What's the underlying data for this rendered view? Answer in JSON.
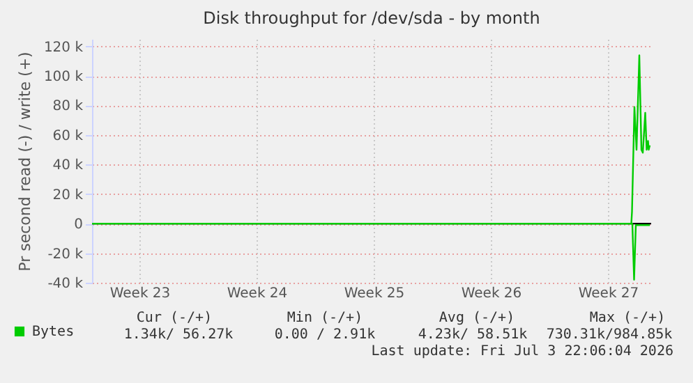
{
  "chart_data": {
    "type": "line",
    "title": "Disk throughput for /dev/sda - by month",
    "ylabel": "Pr second read (-) / write (+)",
    "xlim": [
      "2026-06-01T16:00",
      "2026-07-05T02:00"
    ],
    "xticks": [
      {
        "value": "2026-06-04T12:00",
        "label": "Week 23"
      },
      {
        "value": "2026-06-11T12:00",
        "label": "Week 24"
      },
      {
        "value": "2026-06-18T12:00",
        "label": "Week 25"
      },
      {
        "value": "2026-06-25T12:00",
        "label": "Week 26"
      },
      {
        "value": "2026-07-02T12:00",
        "label": "Week 27"
      }
    ],
    "ylim": [
      -40000,
      125000
    ],
    "yticks": [
      {
        "value": -40000,
        "label": "-40 k"
      },
      {
        "value": -20000,
        "label": "-20 k"
      },
      {
        "value": 0,
        "label": "0"
      },
      {
        "value": 20000,
        "label": "20 k"
      },
      {
        "value": 40000,
        "label": "40 k"
      },
      {
        "value": 60000,
        "label": "60 k"
      },
      {
        "value": 80000,
        "label": "80 k"
      },
      {
        "value": 100000,
        "label": "100 k"
      },
      {
        "value": 120000,
        "label": "120 k"
      }
    ],
    "grid": true,
    "legend": "bottom left",
    "ref_lines": [
      {
        "axis": "y",
        "value": 0,
        "color": "#000000"
      }
    ],
    "series": [
      {
        "name": "Bytes",
        "color": "#00cc00",
        "x": [
          "2026-06-01T16:00",
          "2026-07-03T21:30",
          "2026-07-03T22:30",
          "2026-07-04T02:00",
          "2026-07-04T05:00",
          "2026-07-04T09:00",
          "2026-07-04T12:00",
          "2026-07-04T14:00",
          "2026-07-04T17:30",
          "2026-07-04T19:30",
          "2026-07-04T21:30",
          "2026-07-04T22:30",
          "2026-07-05T00:00"
        ],
        "values": [
          0,
          0,
          8000,
          79000,
          50000,
          114000,
          50000,
          48000,
          75000,
          50000,
          56000,
          50000,
          53000
        ]
      },
      {
        "color": "#00cc00",
        "x": [
          "2026-06-01T16:00",
          "2026-07-03T23:00",
          "2026-07-04T01:30",
          "2026-07-04T04:00",
          "2026-07-05T00:00"
        ],
        "values": [
          0,
          0,
          -38000,
          -1000,
          -1000
        ]
      }
    ],
    "annotations": [
      "Cur (-/+)",
      "Min (-/+)",
      "Avg (-/+)",
      "Max (-/+)",
      "1.34k/ 56.27k",
      "0.00 /  2.91k",
      "4.23k/ 58.51k",
      "730.31k/984.85k",
      "Last update: Fri Jul  3 22:06:04 2026"
    ]
  }
}
